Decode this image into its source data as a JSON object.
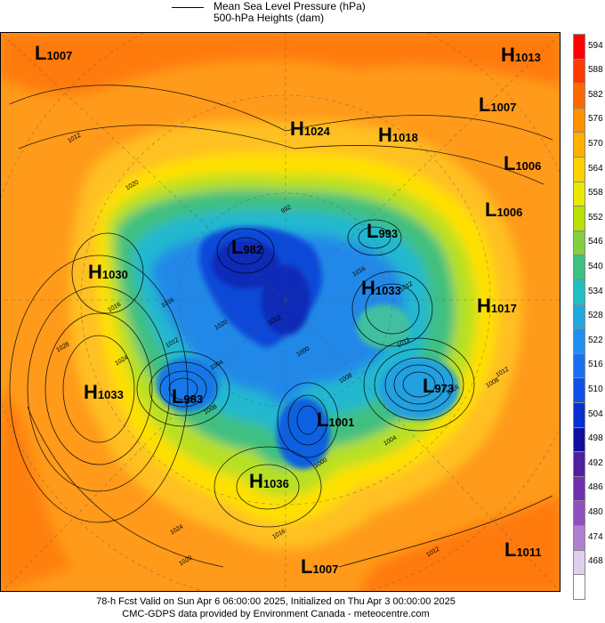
{
  "header": {
    "line1": "Mean Sea Level Pressure (hPa)",
    "line2": "500-hPa Heights (dam)"
  },
  "colorbar": {
    "labels": [
      "594",
      "588",
      "582",
      "576",
      "570",
      "564",
      "558",
      "552",
      "546",
      "540",
      "534",
      "528",
      "522",
      "516",
      "510",
      "504",
      "498",
      "492",
      "486",
      "480",
      "474",
      "468"
    ],
    "colors": [
      "#ff0000",
      "#ff3a00",
      "#ff6a00",
      "#ff9000",
      "#ffb000",
      "#ffd000",
      "#e8e800",
      "#b8e000",
      "#80d040",
      "#40c080",
      "#20c0c0",
      "#20a8e0",
      "#2090f0",
      "#1870f0",
      "#1050e8",
      "#0830d0",
      "#1010a0",
      "#5020a0",
      "#7030b0",
      "#9050c0",
      "#b080d0",
      "#e0d0f0",
      "#ffffff"
    ]
  },
  "systems": [
    {
      "type": "L",
      "value": "1007"
    },
    {
      "type": "H",
      "value": "1013"
    },
    {
      "type": "L",
      "value": "1007"
    },
    {
      "type": "H",
      "value": "1024"
    },
    {
      "type": "H",
      "value": "1018"
    },
    {
      "type": "L",
      "value": "1006"
    },
    {
      "type": "L",
      "value": "1006"
    },
    {
      "type": "L",
      "value": "982"
    },
    {
      "type": "L",
      "value": "993"
    },
    {
      "type": "H",
      "value": "1030"
    },
    {
      "type": "H",
      "value": "1033"
    },
    {
      "type": "H",
      "value": "1017"
    },
    {
      "type": "H",
      "value": "1033"
    },
    {
      "type": "L",
      "value": "983"
    },
    {
      "type": "L",
      "value": "973"
    },
    {
      "type": "L",
      "value": "1001"
    },
    {
      "type": "H",
      "value": "1036"
    },
    {
      "type": "L",
      "value": "1011"
    },
    {
      "type": "L",
      "value": "1007"
    }
  ],
  "isobar_labels": [
    "1012",
    "1020",
    "1016",
    "1028",
    "1024",
    "1016",
    "1012",
    "1020",
    "1004",
    "1012",
    "1000",
    "1008",
    "1012",
    "1016",
    "1004",
    "1000",
    "1008",
    "1024",
    "1020",
    "1016",
    "1012",
    "1012",
    "1012",
    "1008",
    "1012",
    "1016",
    "992"
  ],
  "footer": {
    "line1": "78-h Fcst Valid on Sun Apr  6 06:00:00 2025, Initialized on Thu Apr  3 00:00:00 2025",
    "line2": "CMC-GDPS data provided by Environment Canada - meteocentre.com"
  }
}
